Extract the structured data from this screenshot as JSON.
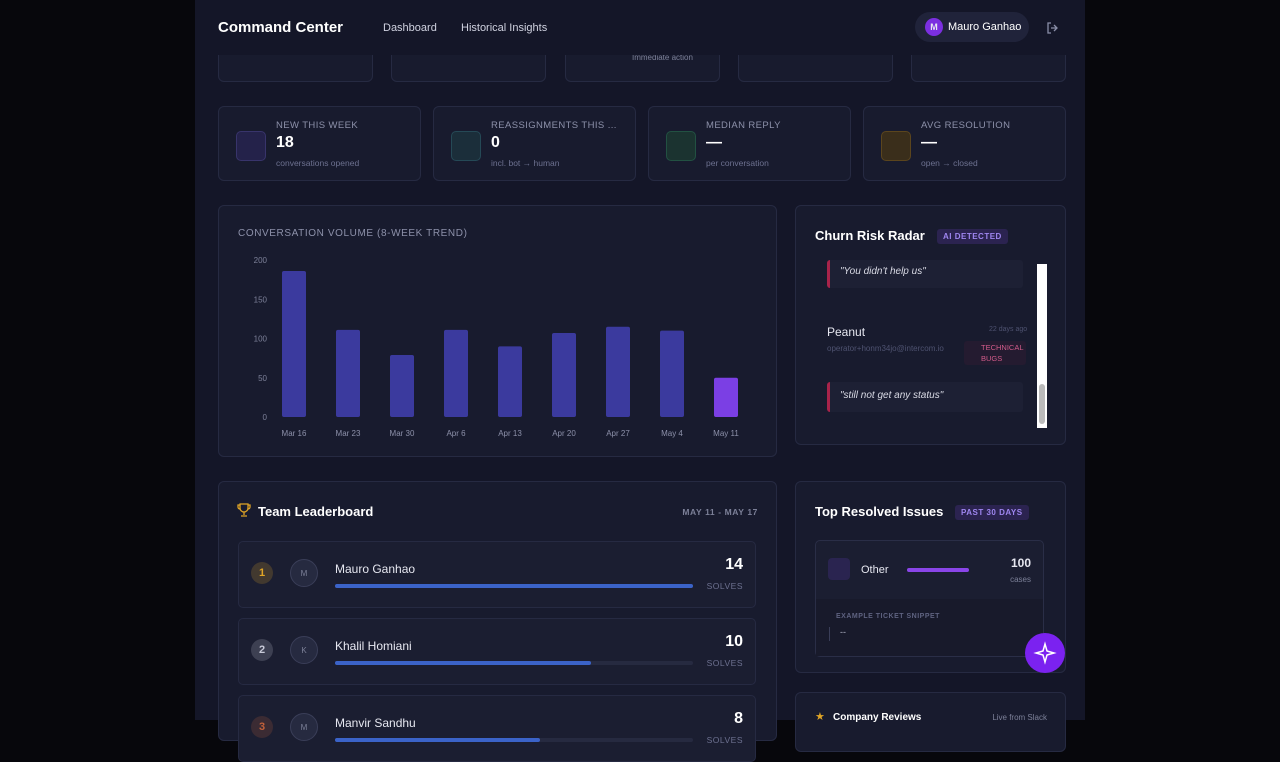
{
  "header": {
    "title": "Command Center",
    "nav": [
      "Dashboard",
      "Historical Insights"
    ],
    "user": {
      "initial": "M",
      "name": "Mauro Ganhao"
    }
  },
  "top_cards_fragment": "Immediate action",
  "stats": [
    {
      "label": "NEW THIS WEEK",
      "value": 18,
      "sub": "conversations opened"
    },
    {
      "label": "REASSIGNMENTS THIS ...",
      "value": 0,
      "sub": "incl. bot → human"
    },
    {
      "label": "MEDIAN REPLY",
      "value": "—",
      "sub": "per conversation"
    },
    {
      "label": "AVG RESOLUTION",
      "value": "—",
      "sub": "open → closed"
    }
  ],
  "chart_data": {
    "type": "bar",
    "title": "CONVERSATION VOLUME (8-WEEK TREND)",
    "categories": [
      "Mar 16",
      "Mar 23",
      "Mar 30",
      "Apr 6",
      "Apr 13",
      "Apr 20",
      "Apr 27",
      "May 4",
      "May 11"
    ],
    "values": [
      186,
      111,
      79,
      111,
      90,
      107,
      115,
      110,
      50
    ],
    "colors": [
      "#3b3a9e",
      "#3b3a9e",
      "#3b3a9e",
      "#3b3a9e",
      "#3b3a9e",
      "#3b3a9e",
      "#3b3a9e",
      "#3b3a9e",
      "#7b3fe4"
    ],
    "ylim": [
      0,
      200
    ],
    "yticks": [
      0,
      50,
      100,
      150,
      200
    ]
  },
  "churn": {
    "title": "Churn Risk Radar",
    "badge": "AI DETECTED",
    "quote_1": "\"You didn't help us\"",
    "customer": {
      "name": "Peanut",
      "email": "operator+honm34jo@intercom.io",
      "time": "22 days ago",
      "tag": "TECHNICAL BUGS"
    },
    "quote_2": "\"still not get any status\""
  },
  "leaderboard": {
    "title": "Team Leaderboard",
    "range": "MAY 11 - MAY 17",
    "unit": "SOLVES",
    "rows": [
      {
        "rank": 1,
        "initial": "M",
        "name": "Mauro Ganhao",
        "solves": 14
      },
      {
        "rank": 2,
        "initial": "K",
        "name": "Khalil Homiani",
        "solves": 10
      },
      {
        "rank": 3,
        "initial": "M",
        "name": "Manvir Sandhu",
        "solves": 8
      }
    ]
  },
  "resolved": {
    "title": "Top Resolved Issues",
    "badge": "PAST 30 DAYS",
    "items": [
      {
        "name": "Other",
        "count": 100,
        "unit": "cases",
        "snippet_label": "EXAMPLE TICKET SNIPPET",
        "snippet": "--"
      }
    ]
  },
  "reviews": {
    "title": "Company Reviews",
    "source": "Live from Slack"
  }
}
